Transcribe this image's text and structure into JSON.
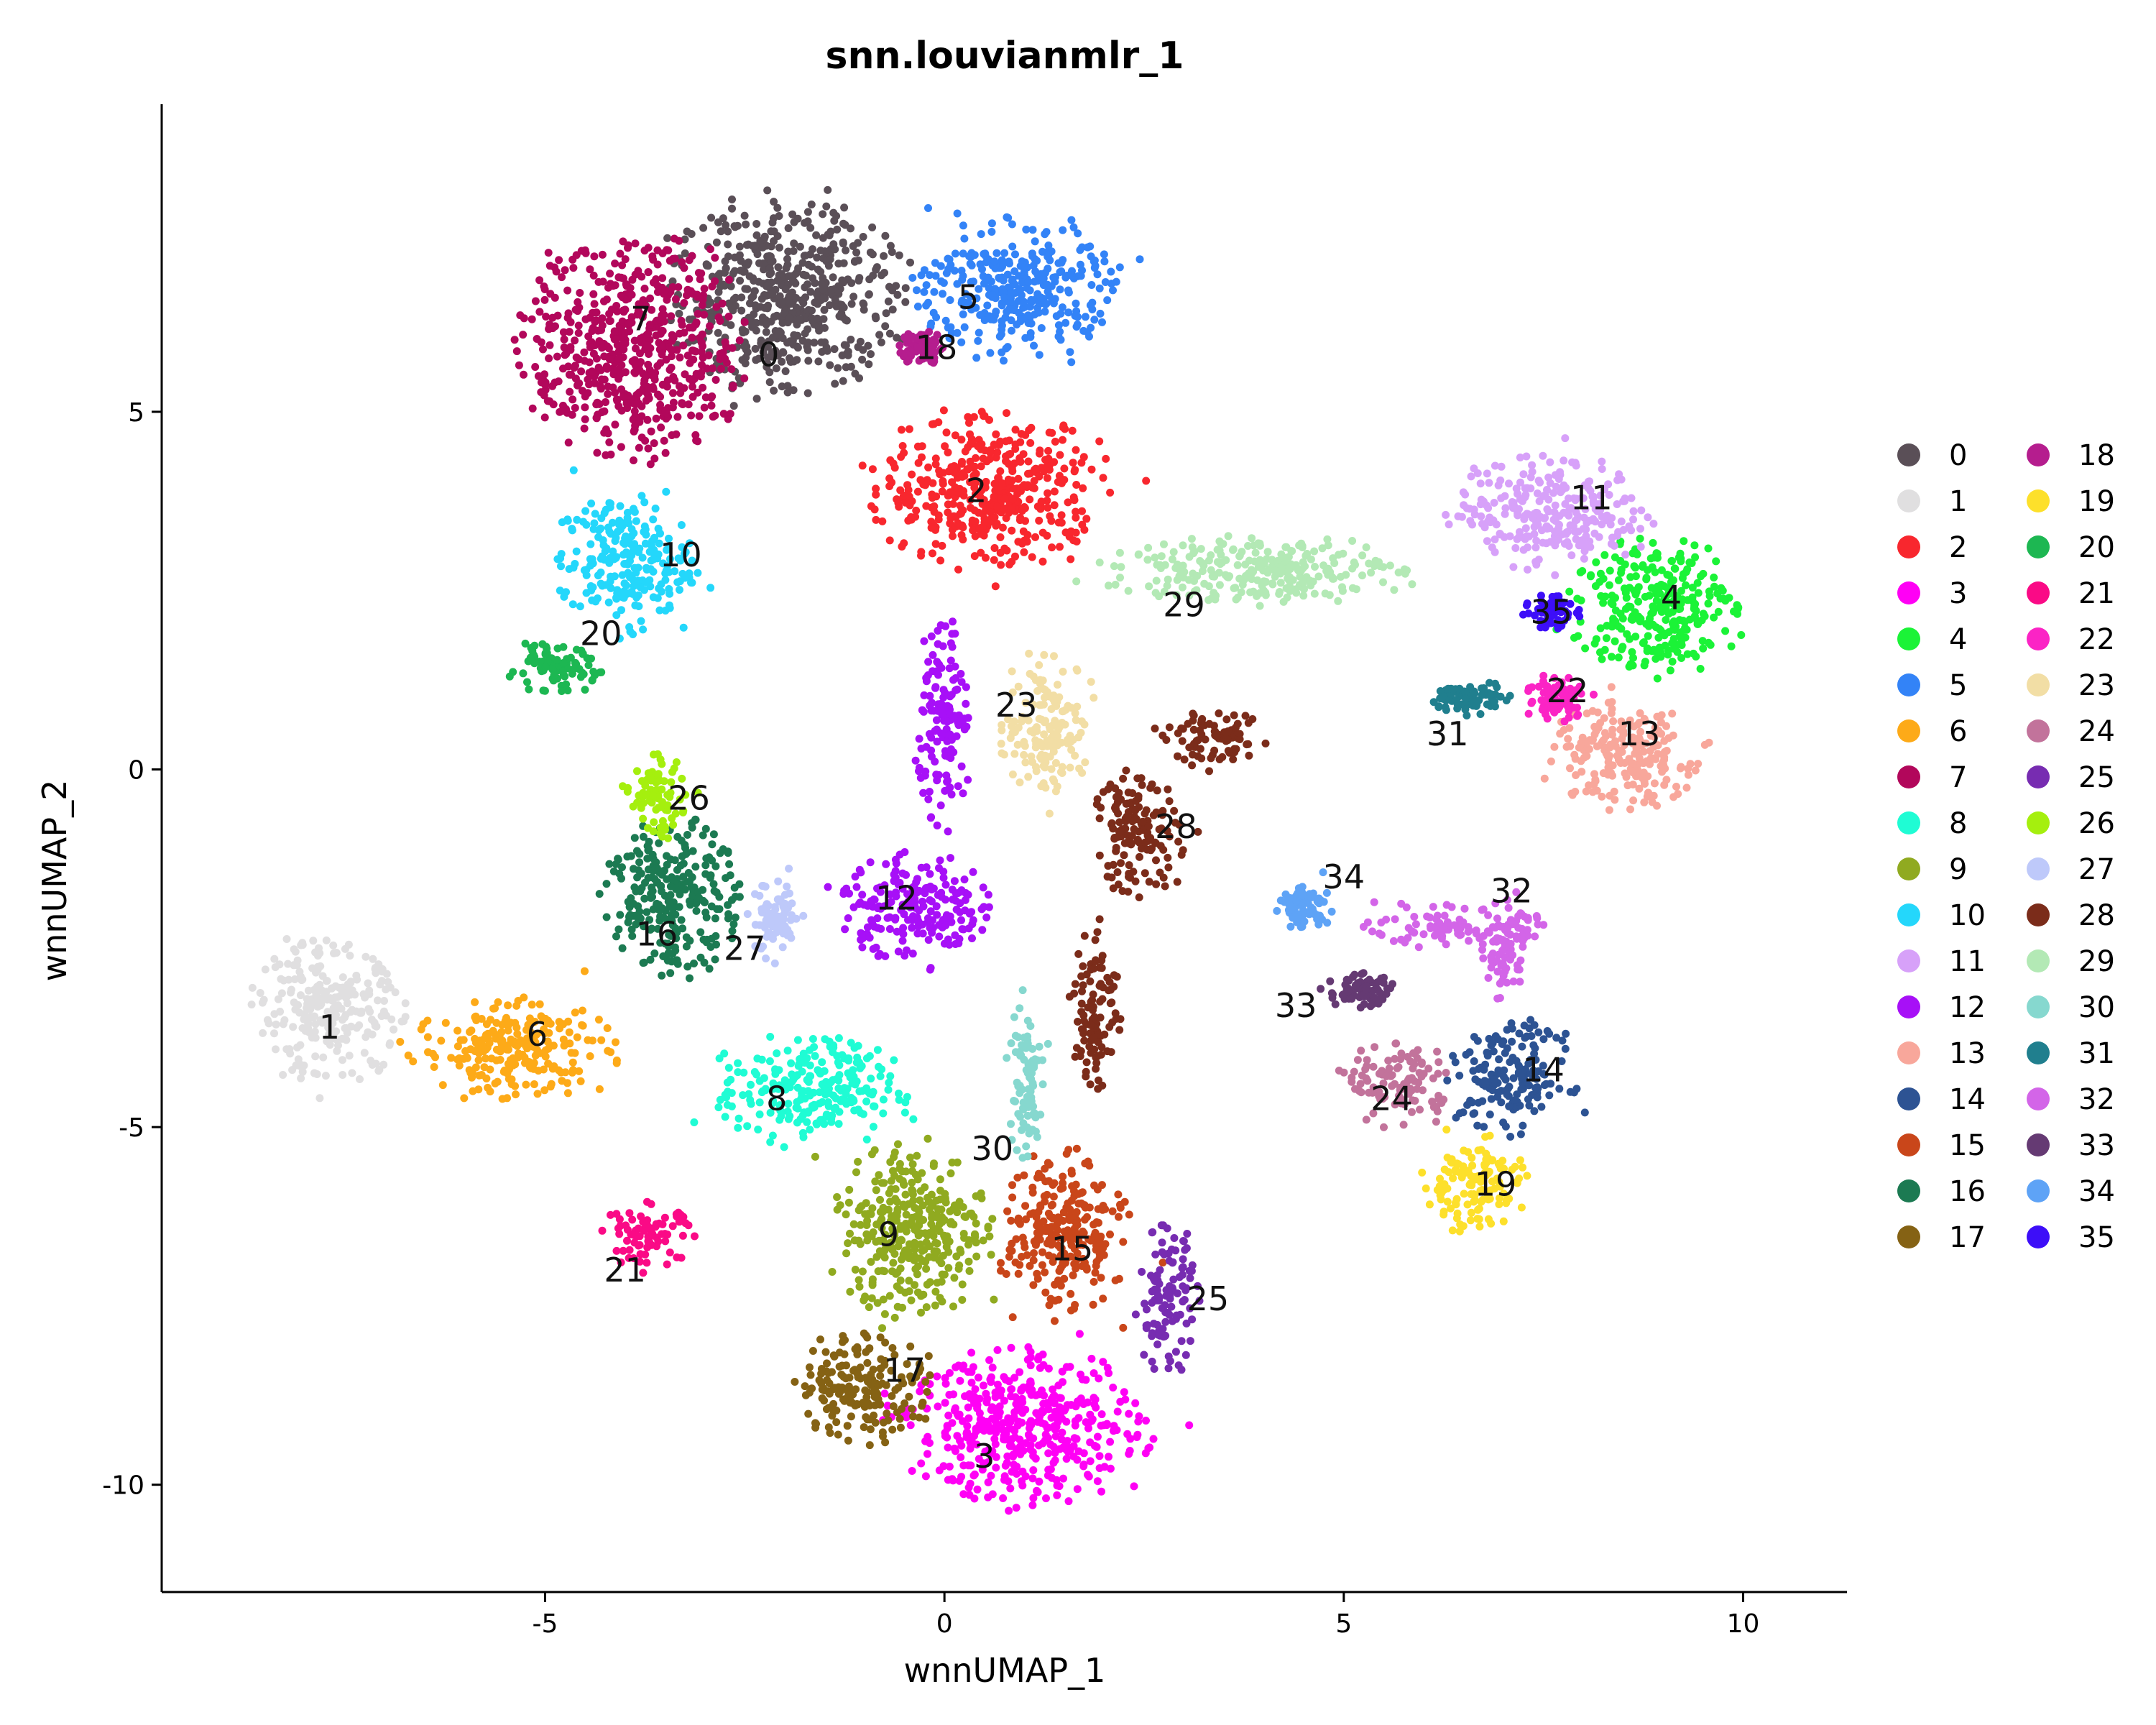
{
  "chart_data": {
    "type": "scatter",
    "title": "snn.louvianmlr_1",
    "xlabel": "wnnUMAP_1",
    "ylabel": "wnnUMAP_2",
    "xlim": [
      -9.8,
      11.3
    ],
    "ylim": [
      -11.5,
      9.3
    ],
    "x_ticks": [
      -5,
      0,
      5,
      10
    ],
    "x_tick_labels": [
      "-5",
      "0",
      "5",
      "10"
    ],
    "y_ticks": [
      5,
      0,
      -5,
      -10
    ],
    "y_tick_labels": [
      "5",
      "0",
      "-5",
      "-10"
    ],
    "grid": false,
    "legend_position": "right",
    "clusters": [
      {
        "id": "0",
        "color": "#5A4F57",
        "label_x": -2.2,
        "label_y": 5.8,
        "blobs": [
          [
            -2.0,
            6.6,
            1.5,
            1.4
          ]
        ]
      },
      {
        "id": "1",
        "color": "#E0DFE0",
        "label_x": -7.7,
        "label_y": -3.6,
        "blobs": [
          [
            -7.7,
            -3.4,
            1.0,
            1.0
          ]
        ]
      },
      {
        "id": "2",
        "color": "#F8272E",
        "label_x": 0.4,
        "label_y": 3.9,
        "blobs": [
          [
            0.6,
            3.9,
            1.5,
            1.1
          ]
        ]
      },
      {
        "id": "3",
        "color": "#FF00F5",
        "label_x": 0.5,
        "label_y": -9.6,
        "blobs": [
          [
            1.0,
            -9.2,
            1.6,
            1.1
          ]
        ]
      },
      {
        "id": "4",
        "color": "#1BF337",
        "label_x": 9.1,
        "label_y": 2.4,
        "blobs": [
          [
            8.9,
            2.3,
            1.1,
            1.0
          ]
        ]
      },
      {
        "id": "5",
        "color": "#3383F7",
        "label_x": 0.3,
        "label_y": 6.6,
        "blobs": [
          [
            0.9,
            6.7,
            1.3,
            1.0
          ]
        ]
      },
      {
        "id": "6",
        "color": "#FDAA18",
        "label_x": -5.1,
        "label_y": -3.7,
        "blobs": [
          [
            -5.4,
            -3.9,
            1.3,
            0.7
          ]
        ]
      },
      {
        "id": "7",
        "color": "#B2075B",
        "label_x": -3.8,
        "label_y": 6.3,
        "blobs": [
          [
            -3.9,
            5.9,
            1.4,
            1.6
          ]
        ]
      },
      {
        "id": "8",
        "color": "#1FFCD4",
        "label_x": -2.1,
        "label_y": -4.6,
        "blobs": [
          [
            -1.7,
            -4.5,
            1.2,
            0.8
          ]
        ]
      },
      {
        "id": "9",
        "color": "#90AA20",
        "label_x": -0.7,
        "label_y": -6.5,
        "blobs": [
          [
            -0.4,
            -6.4,
            1.0,
            1.3
          ]
        ]
      },
      {
        "id": "10",
        "color": "#24D7FB",
        "label_x": -3.3,
        "label_y": 3.0,
        "blobs": [
          [
            -4.0,
            2.9,
            0.9,
            1.0
          ]
        ]
      },
      {
        "id": "11",
        "color": "#D7A1F9",
        "label_x": 8.1,
        "label_y": 3.8,
        "blobs": [
          [
            7.6,
            3.6,
            1.3,
            0.8
          ]
        ]
      },
      {
        "id": "12",
        "color": "#A710F7",
        "label_x": -0.6,
        "label_y": -1.8,
        "blobs": [
          [
            -0.4,
            -1.9,
            1.0,
            0.8
          ],
          [
            0.0,
            0.6,
            0.35,
            1.5
          ]
        ]
      },
      {
        "id": "13",
        "color": "#F8A79B",
        "label_x": 8.7,
        "label_y": 0.5,
        "blobs": [
          [
            8.5,
            0.2,
            1.0,
            0.8
          ]
        ]
      },
      {
        "id": "14",
        "color": "#2D5393",
        "label_x": 7.5,
        "label_y": -4.2,
        "blobs": [
          [
            7.1,
            -4.3,
            0.8,
            0.8
          ]
        ]
      },
      {
        "id": "15",
        "color": "#C9461A",
        "label_x": 1.6,
        "label_y": -6.7,
        "blobs": [
          [
            1.5,
            -6.5,
            0.8,
            1.2
          ]
        ]
      },
      {
        "id": "16",
        "color": "#1C7A52",
        "label_x": -3.6,
        "label_y": -2.3,
        "blobs": [
          [
            -3.4,
            -1.8,
            0.9,
            1.1
          ]
        ]
      },
      {
        "id": "17",
        "color": "#856214",
        "label_x": -0.5,
        "label_y": -8.4,
        "blobs": [
          [
            -1.0,
            -8.6,
            0.9,
            0.8
          ]
        ]
      },
      {
        "id": "18",
        "color": "#B51D8E",
        "label_x": -0.1,
        "label_y": 5.9,
        "blobs": [
          [
            -0.3,
            5.9,
            0.3,
            0.25
          ]
        ]
      },
      {
        "id": "19",
        "color": "#FDE02B",
        "label_x": 6.9,
        "label_y": -5.8,
        "blobs": [
          [
            6.6,
            -5.8,
            0.7,
            0.7
          ]
        ]
      },
      {
        "id": "20",
        "color": "#1DB752",
        "label_x": -4.3,
        "label_y": 1.9,
        "blobs": [
          [
            -4.9,
            1.4,
            0.65,
            0.35
          ]
        ]
      },
      {
        "id": "21",
        "color": "#FA0A86",
        "label_x": -4.0,
        "label_y": -7.0,
        "blobs": [
          [
            -3.7,
            -6.5,
            0.6,
            0.45
          ]
        ]
      },
      {
        "id": "22",
        "color": "#FB24C5",
        "label_x": 7.8,
        "label_y": 1.1,
        "blobs": [
          [
            7.7,
            1.0,
            0.45,
            0.35
          ]
        ]
      },
      {
        "id": "23",
        "color": "#F2DEA5",
        "label_x": 0.9,
        "label_y": 0.9,
        "blobs": [
          [
            1.3,
            0.6,
            0.6,
            1.0
          ]
        ]
      },
      {
        "id": "24",
        "color": "#C2739B",
        "label_x": 5.6,
        "label_y": -4.6,
        "blobs": [
          [
            5.7,
            -4.4,
            0.7,
            0.6
          ]
        ]
      },
      {
        "id": "25",
        "color": "#772CB1",
        "label_x": 3.3,
        "label_y": -7.4,
        "blobs": [
          [
            2.8,
            -7.4,
            0.4,
            1.1
          ]
        ]
      },
      {
        "id": "26",
        "color": "#A5EF0E",
        "label_x": -3.2,
        "label_y": -0.4,
        "blobs": [
          [
            -3.6,
            -0.4,
            0.4,
            0.6
          ]
        ]
      },
      {
        "id": "27",
        "color": "#BEC9FA",
        "label_x": -2.5,
        "label_y": -2.5,
        "blobs": [
          [
            -2.1,
            -2.1,
            0.35,
            0.6
          ]
        ]
      },
      {
        "id": "28",
        "color": "#7B2C1A",
        "label_x": 2.9,
        "label_y": -0.8,
        "blobs": [
          [
            2.4,
            -0.9,
            0.6,
            0.9
          ],
          [
            1.9,
            -3.3,
            0.3,
            1.3
          ],
          [
            3.4,
            0.4,
            0.7,
            0.4
          ]
        ]
      },
      {
        "id": "29",
        "color": "#B3E9B5",
        "label_x": 3.0,
        "label_y": 2.3,
        "blobs": [
          [
            3.9,
            2.8,
            2.0,
            0.5
          ]
        ]
      },
      {
        "id": "30",
        "color": "#86D8CF",
        "label_x": 0.6,
        "label_y": -5.3,
        "blobs": [
          [
            1.0,
            -4.4,
            0.25,
            1.3
          ]
        ]
      },
      {
        "id": "31",
        "color": "#207F8E",
        "label_x": 6.3,
        "label_y": 0.5,
        "blobs": [
          [
            6.6,
            1.0,
            0.5,
            0.25
          ]
        ]
      },
      {
        "id": "32",
        "color": "#D365E8",
        "label_x": 7.1,
        "label_y": -1.7,
        "blobs": [
          [
            6.4,
            -2.2,
            1.2,
            0.3
          ],
          [
            7.0,
            -2.5,
            0.3,
            0.8
          ]
        ]
      },
      {
        "id": "33",
        "color": "#653A73",
        "label_x": 4.4,
        "label_y": -3.3,
        "blobs": [
          [
            5.2,
            -3.1,
            0.45,
            0.25
          ]
        ]
      },
      {
        "id": "34",
        "color": "#5EA3F6",
        "label_x": 5.0,
        "label_y": -1.5,
        "blobs": [
          [
            4.5,
            -1.9,
            0.35,
            0.3
          ]
        ]
      },
      {
        "id": "35",
        "color": "#3D0EF8",
        "label_x": 7.6,
        "label_y": 2.2,
        "blobs": [
          [
            7.6,
            2.2,
            0.35,
            0.25
          ]
        ]
      }
    ]
  }
}
